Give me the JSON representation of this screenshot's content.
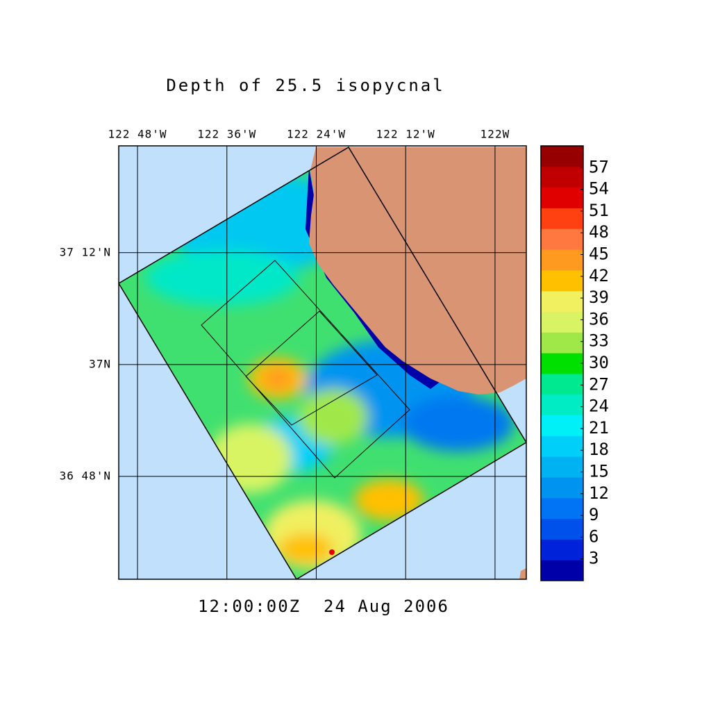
{
  "title": "Depth of 25.5 isopycnal",
  "timestamp": "12:00:00Z  24 Aug 2006",
  "map": {
    "lon_range": [
      -122.842,
      -121.93
    ],
    "lat_range": [
      36.616,
      37.391
    ],
    "lon_ticks": [
      {
        "value": -122.8,
        "label": "122 48'W"
      },
      {
        "value": -122.6,
        "label": "122 36'W"
      },
      {
        "value": -122.4,
        "label": "122 24'W"
      },
      {
        "value": -122.2,
        "label": "122 12'W"
      },
      {
        "value": -122,
        "label": "122W"
      }
    ],
    "lat_ticks": [
      {
        "value": 37.2,
        "label": "37 12'N"
      },
      {
        "value": 37,
        "label": "37N"
      },
      {
        "value": 36.8,
        "label": "36 48'N"
      }
    ]
  },
  "colorbar": {
    "range": [
      0,
      60
    ],
    "ticks": [
      3,
      6,
      9,
      12,
      15,
      18,
      21,
      24,
      27,
      30,
      33,
      36,
      39,
      42,
      45,
      48,
      51,
      54,
      57
    ],
    "colors": [
      "#0000a8",
      "#0022d8",
      "#0050ec",
      "#0074f4",
      "#0094f0",
      "#00b2f2",
      "#00d0f8",
      "#00f0f8",
      "#00ecc4",
      "#00e890",
      "#00e000",
      "#a0e848",
      "#d8f464",
      "#f0f060",
      "#ffc000",
      "#ff9a20",
      "#ff7840",
      "#ff4010",
      "#e00000",
      "#c00000",
      "#960000"
    ]
  }
}
